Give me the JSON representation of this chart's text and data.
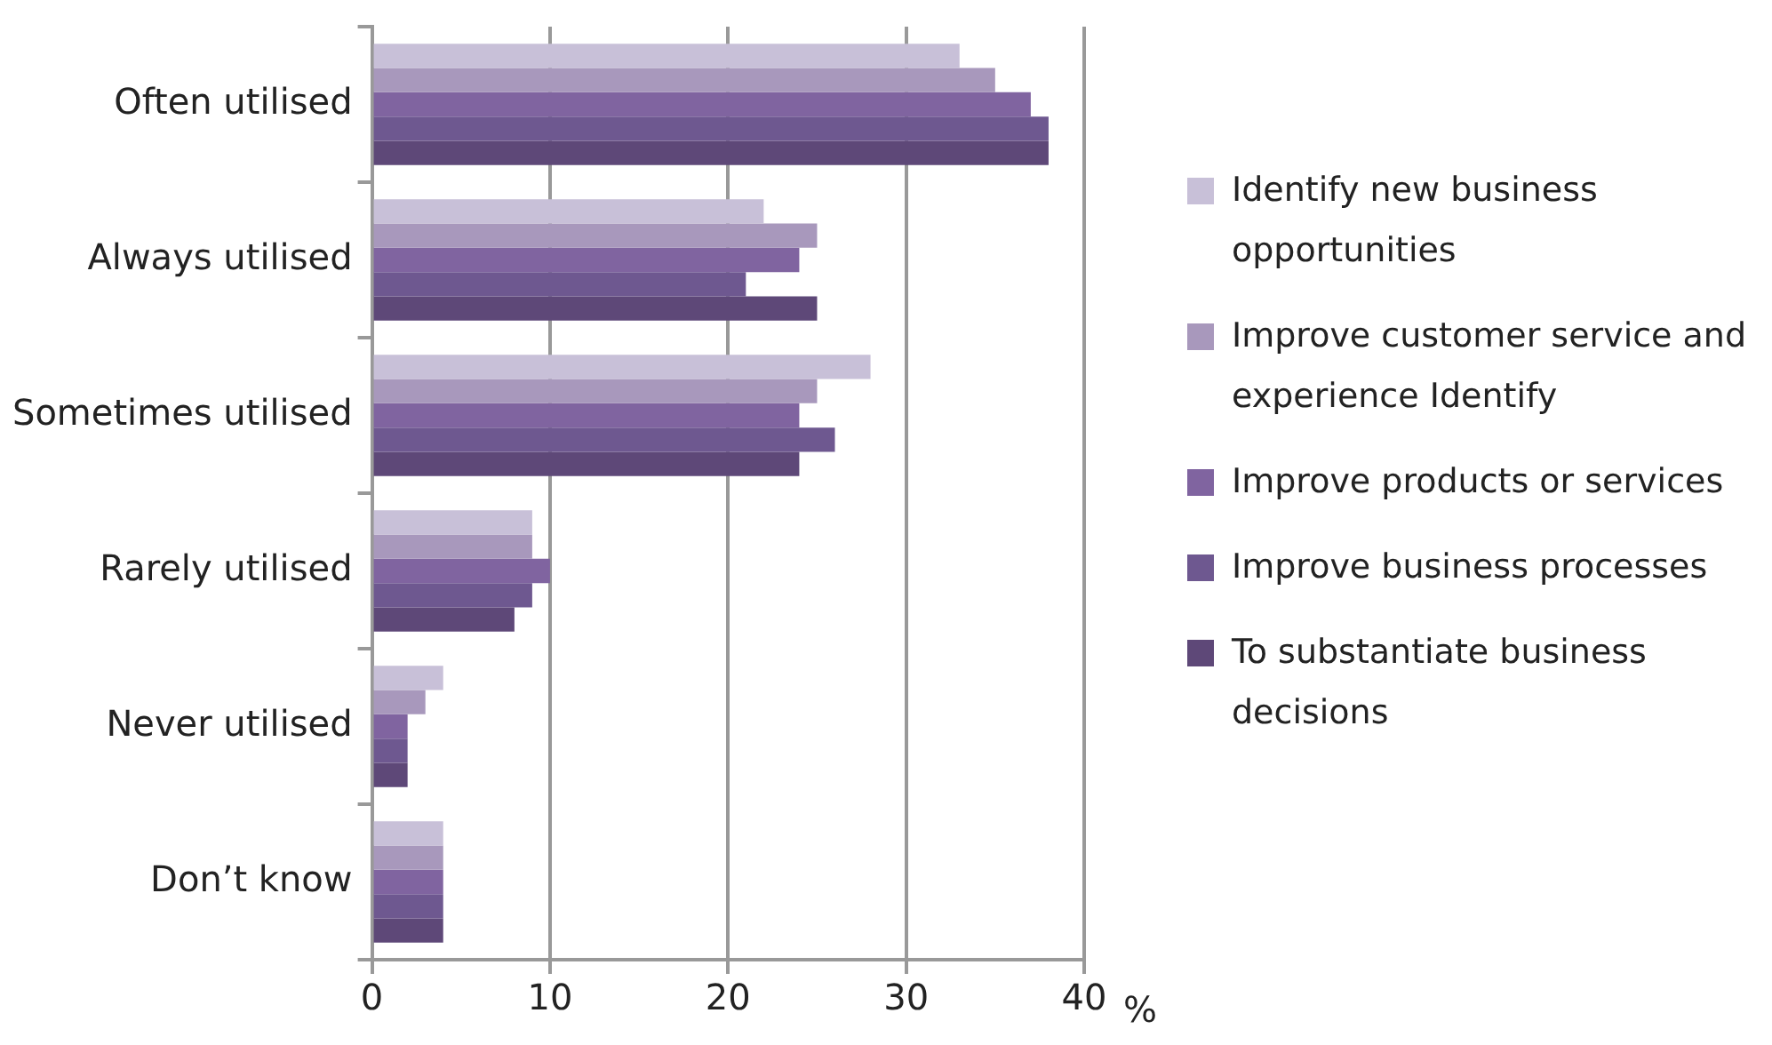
{
  "chart_data": {
    "type": "bar",
    "orientation": "horizontal",
    "xlabel": "%",
    "categories": [
      "Often utilised",
      "Always utilised",
      "Sometimes utilised",
      "Rarely utilised",
      "Never utilised",
      "Don’t know"
    ],
    "series": [
      {
        "name": "Identify new business opportunities",
        "color": "#c8c0d8",
        "values": [
          33,
          22,
          28,
          9,
          4,
          4
        ]
      },
      {
        "name": "Improve customer service and experience Identify",
        "color": "#a898bc",
        "values": [
          35,
          25,
          25,
          9,
          3,
          4
        ]
      },
      {
        "name": "Improve products or services",
        "color": "#8064a0",
        "values": [
          37,
          24,
          24,
          10,
          2,
          4
        ]
      },
      {
        "name": "Improve business processes",
        "color": "#6e5890",
        "values": [
          38,
          21,
          26,
          9,
          2,
          4
        ]
      },
      {
        "name": "To substantiate business decisions",
        "color": "#5e4878",
        "values": [
          38,
          25,
          24,
          8,
          2,
          4
        ]
      }
    ],
    "xlim": [
      0,
      40
    ],
    "xticks": [
      0,
      10,
      20,
      30,
      40
    ],
    "grid": "x",
    "legend": "right"
  }
}
